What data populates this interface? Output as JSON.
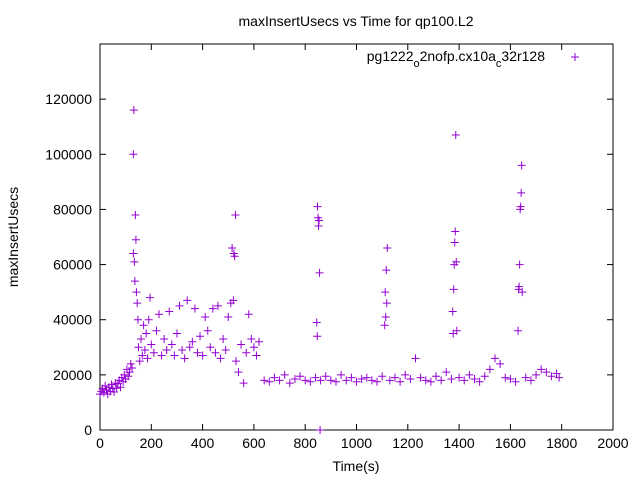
{
  "chart_data": {
    "type": "scatter",
    "title": "maxInsertUsecs vs Time for qp100.L2",
    "xlabel": "Time(s)",
    "ylabel": "maxInsertUsecs",
    "xlim": [
      0,
      2000
    ],
    "ylim": [
      0,
      140000
    ],
    "xticks": [
      0,
      200,
      400,
      600,
      800,
      1000,
      1200,
      1400,
      1600,
      1800,
      2000
    ],
    "yticks": [
      0,
      20000,
      40000,
      60000,
      80000,
      100000,
      120000
    ],
    "grid": false,
    "legend_position": "top-right",
    "marker": "plus",
    "series": [
      {
        "name": "pg1222_o2nofp.cx10a_c32r128",
        "legend_parts": [
          {
            "text": "pg1222",
            "shift": "base"
          },
          {
            "text": "o",
            "shift": "sub"
          },
          {
            "text": "2nofp.cx10a",
            "shift": "base"
          },
          {
            "text": "c",
            "shift": "sub"
          },
          {
            "text": "32r128",
            "shift": "base"
          }
        ],
        "color": "#9400d3",
        "points": [
          [
            0,
            13000
          ],
          [
            5,
            14000
          ],
          [
            10,
            15000
          ],
          [
            15,
            13500
          ],
          [
            20,
            16000
          ],
          [
            25,
            14500
          ],
          [
            30,
            13000
          ],
          [
            35,
            15500
          ],
          [
            40,
            14000
          ],
          [
            45,
            16500
          ],
          [
            50,
            15000
          ],
          [
            55,
            13800
          ],
          [
            60,
            17000
          ],
          [
            65,
            15200
          ],
          [
            70,
            16800
          ],
          [
            75,
            18000
          ],
          [
            80,
            15500
          ],
          [
            85,
            19000
          ],
          [
            90,
            17500
          ],
          [
            95,
            20000
          ],
          [
            100,
            18500
          ],
          [
            105,
            22000
          ],
          [
            110,
            19500
          ],
          [
            115,
            21000
          ],
          [
            120,
            24000
          ],
          [
            125,
            22500
          ],
          [
            130,
            64000
          ],
          [
            130,
            100000
          ],
          [
            132,
            116000
          ],
          [
            134,
            61000
          ],
          [
            136,
            54000
          ],
          [
            138,
            78000
          ],
          [
            140,
            69000
          ],
          [
            142,
            50000
          ],
          [
            145,
            46000
          ],
          [
            148,
            40000
          ],
          [
            150,
            30000
          ],
          [
            155,
            25000
          ],
          [
            160,
            33000
          ],
          [
            165,
            27000
          ],
          [
            170,
            38000
          ],
          [
            175,
            29000
          ],
          [
            180,
            35000
          ],
          [
            185,
            26000
          ],
          [
            190,
            40000
          ],
          [
            195,
            48000
          ],
          [
            200,
            31000
          ],
          [
            210,
            28000
          ],
          [
            220,
            36000
          ],
          [
            230,
            42000
          ],
          [
            240,
            27000
          ],
          [
            250,
            33000
          ],
          [
            260,
            29000
          ],
          [
            270,
            43000
          ],
          [
            280,
            31000
          ],
          [
            290,
            27000
          ],
          [
            300,
            35000
          ],
          [
            310,
            45000
          ],
          [
            320,
            29000
          ],
          [
            330,
            26000
          ],
          [
            340,
            47000
          ],
          [
            350,
            30000
          ],
          [
            360,
            32000
          ],
          [
            370,
            44000
          ],
          [
            380,
            28000
          ],
          [
            390,
            34000
          ],
          [
            400,
            27000
          ],
          [
            410,
            41000
          ],
          [
            420,
            36000
          ],
          [
            430,
            30000
          ],
          [
            440,
            44000
          ],
          [
            450,
            28000
          ],
          [
            460,
            45000
          ],
          [
            470,
            26000
          ],
          [
            480,
            33000
          ],
          [
            490,
            29000
          ],
          [
            500,
            41000
          ],
          [
            510,
            46000
          ],
          [
            515,
            66000
          ],
          [
            520,
            47000
          ],
          [
            522,
            64000
          ],
          [
            525,
            63000
          ],
          [
            528,
            78000
          ],
          [
            530,
            25000
          ],
          [
            540,
            21000
          ],
          [
            550,
            31000
          ],
          [
            560,
            17000
          ],
          [
            570,
            28000
          ],
          [
            580,
            42000
          ],
          [
            590,
            33000
          ],
          [
            600,
            30000
          ],
          [
            610,
            27000
          ],
          [
            620,
            32000
          ],
          [
            640,
            18000
          ],
          [
            660,
            17500
          ],
          [
            680,
            19000
          ],
          [
            700,
            18000
          ],
          [
            720,
            20000
          ],
          [
            740,
            17000
          ],
          [
            760,
            18500
          ],
          [
            780,
            19500
          ],
          [
            800,
            18000
          ],
          [
            820,
            17500
          ],
          [
            840,
            19000
          ],
          [
            845,
            39000
          ],
          [
            847,
            34000
          ],
          [
            848,
            81000
          ],
          [
            850,
            77000
          ],
          [
            852,
            74000
          ],
          [
            854,
            76000
          ],
          [
            856,
            57000
          ],
          [
            858,
            0
          ],
          [
            860,
            18000
          ],
          [
            880,
            19500
          ],
          [
            900,
            18000
          ],
          [
            920,
            17500
          ],
          [
            940,
            20000
          ],
          [
            960,
            18000
          ],
          [
            980,
            19000
          ],
          [
            1000,
            17500
          ],
          [
            1020,
            18500
          ],
          [
            1040,
            19000
          ],
          [
            1060,
            18000
          ],
          [
            1080,
            17500
          ],
          [
            1100,
            19500
          ],
          [
            1110,
            38000
          ],
          [
            1112,
            50000
          ],
          [
            1114,
            41000
          ],
          [
            1116,
            58000
          ],
          [
            1118,
            46000
          ],
          [
            1120,
            66000
          ],
          [
            1130,
            18000
          ],
          [
            1150,
            19000
          ],
          [
            1170,
            17500
          ],
          [
            1190,
            20000
          ],
          [
            1210,
            18500
          ],
          [
            1230,
            26000
          ],
          [
            1250,
            19000
          ],
          [
            1270,
            18000
          ],
          [
            1290,
            17500
          ],
          [
            1310,
            19500
          ],
          [
            1330,
            18000
          ],
          [
            1350,
            21000
          ],
          [
            1370,
            18500
          ],
          [
            1375,
            43000
          ],
          [
            1377,
            35000
          ],
          [
            1379,
            51000
          ],
          [
            1381,
            60000
          ],
          [
            1383,
            68000
          ],
          [
            1385,
            72000
          ],
          [
            1387,
            107000
          ],
          [
            1389,
            61000
          ],
          [
            1391,
            36000
          ],
          [
            1400,
            19000
          ],
          [
            1420,
            18000
          ],
          [
            1440,
            20000
          ],
          [
            1460,
            18500
          ],
          [
            1480,
            17500
          ],
          [
            1500,
            19500
          ],
          [
            1520,
            22000
          ],
          [
            1540,
            26000
          ],
          [
            1560,
            24000
          ],
          [
            1580,
            19000
          ],
          [
            1600,
            18500
          ],
          [
            1620,
            17500
          ],
          [
            1630,
            36000
          ],
          [
            1632,
            51000
          ],
          [
            1634,
            52000
          ],
          [
            1636,
            60000
          ],
          [
            1638,
            80000
          ],
          [
            1640,
            81000
          ],
          [
            1642,
            86000
          ],
          [
            1644,
            96000
          ],
          [
            1646,
            50000
          ],
          [
            1660,
            19000
          ],
          [
            1680,
            18000
          ],
          [
            1700,
            20000
          ],
          [
            1720,
            22000
          ],
          [
            1740,
            21000
          ],
          [
            1760,
            19500
          ],
          [
            1780,
            20500
          ],
          [
            1790,
            19000
          ]
        ]
      }
    ]
  }
}
